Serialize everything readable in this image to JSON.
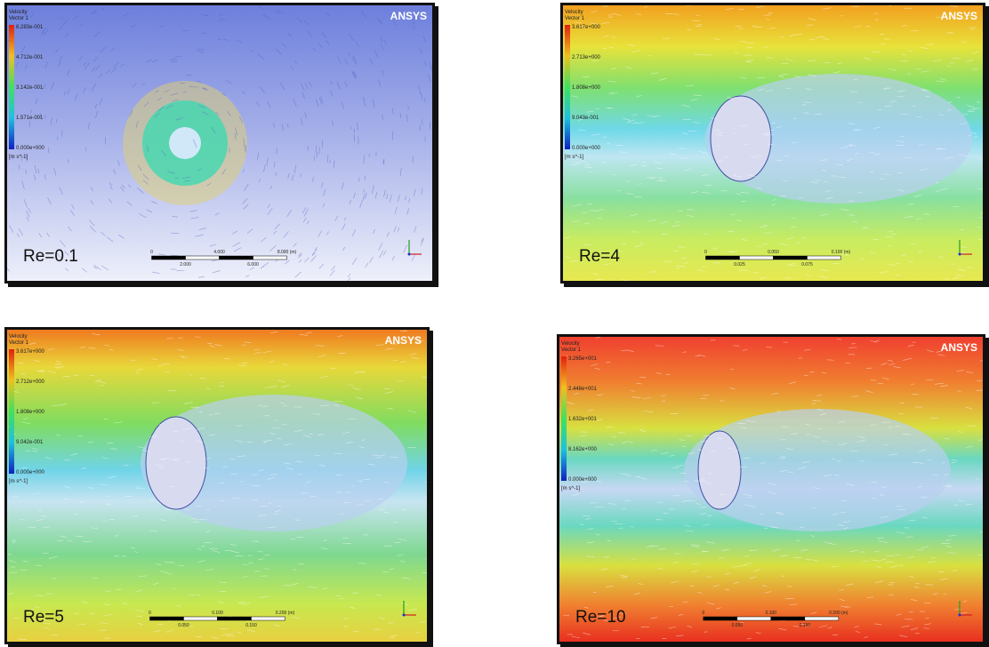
{
  "panels": [
    {
      "label": "Re=0.1",
      "logo": "ANSYS",
      "legend": {
        "title": [
          "Velocity",
          "Vector 1"
        ],
        "ticks": [
          "6.283e-001",
          "4.712e-001",
          "3.142e-001",
          "1.571e-001",
          "0.000e+000"
        ],
        "unit": "[m s^-1]"
      },
      "scale": {
        "top": [
          "0",
          "4.000",
          "8.000 (m)"
        ],
        "bottom": [
          "2.000",
          "6.000"
        ]
      }
    },
    {
      "label": "Re=4",
      "logo": "ANSYS",
      "legend": {
        "title": [
          "Velocity",
          "Vector 1"
        ],
        "ticks": [
          "3.617e+000",
          "2.713e+000",
          "1.808e+000",
          "9.043e-001",
          "0.000e+000"
        ],
        "unit": "[m s^-1]"
      },
      "scale": {
        "top": [
          "0",
          "0.050",
          "0.100 (m)"
        ],
        "bottom": [
          "0.025",
          "0.075"
        ]
      }
    },
    {
      "label": "Re=5",
      "logo": "ANSYS",
      "legend": {
        "title": [
          "Velocity",
          "Vector 1"
        ],
        "ticks": [
          "3.617e+000",
          "2.712e+000",
          "1.808e+000",
          "9.042e-001",
          "0.000e+000"
        ],
        "unit": "[m s^-1]"
      },
      "scale": {
        "top": [
          "0",
          "0.100",
          "0.200 (m)"
        ],
        "bottom": [
          "0.050",
          "0.150"
        ]
      }
    },
    {
      "label": "Re=10",
      "logo": "ANSYS",
      "legend": {
        "title": [
          "Velocity",
          "Vector 1"
        ],
        "ticks": [
          "3.265e+001",
          "2.448e+001",
          "1.632e+001",
          "8.162e+000",
          "0.000e+000"
        ],
        "unit": "[m s^-1]"
      },
      "scale": {
        "top": [
          "0",
          "0.100",
          "0.200 (m)"
        ],
        "bottom": [
          "0.050",
          "0.150"
        ]
      }
    }
  ]
}
